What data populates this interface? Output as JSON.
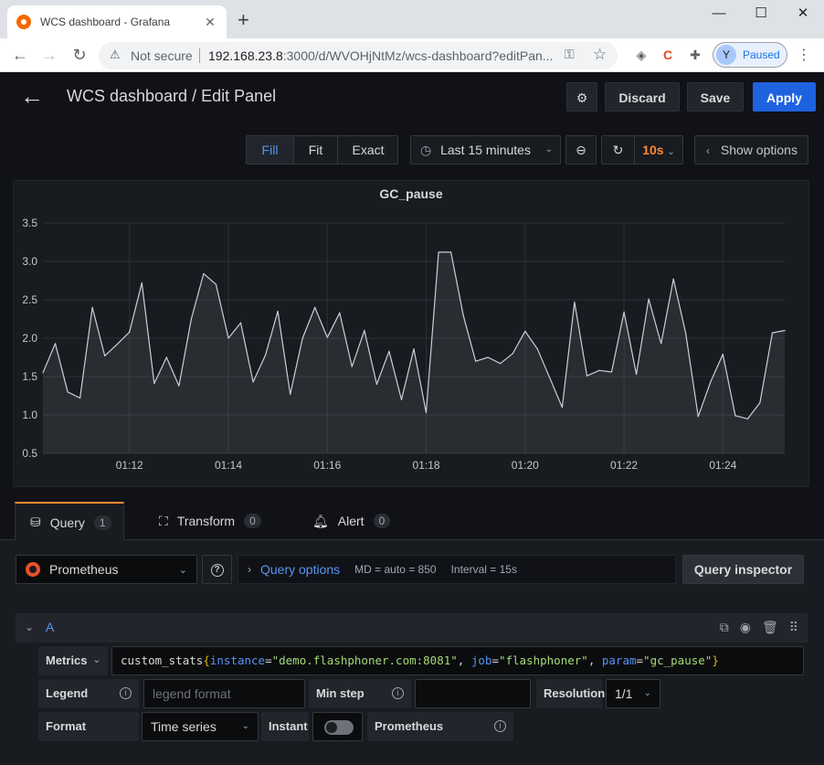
{
  "browser": {
    "tab_title": "WCS dashboard - Grafana",
    "omnibox": {
      "security_label": "Not secure",
      "url_host": "192.168.23.8",
      "url_rest": ":3000/d/WVOHjNtMz/wcs-dashboard?editPan..."
    },
    "profile": {
      "initial": "Y",
      "status": "Paused"
    }
  },
  "header": {
    "title": "WCS dashboard / Edit Panel",
    "discard_label": "Discard",
    "save_label": "Save",
    "apply_label": "Apply"
  },
  "panel_toolbar": {
    "fill_label": "Fill",
    "fit_label": "Fit",
    "exact_label": "Exact",
    "time_range": "Last 15 minutes",
    "refresh_interval": "10s",
    "show_options_label": "Show options"
  },
  "panel": {
    "title": "GC_pause"
  },
  "chart_data": {
    "type": "area",
    "title": "GC_pause",
    "x_tick_labels": [
      "01:12",
      "01:14",
      "01:16",
      "01:18",
      "01:20",
      "01:22",
      "01:24"
    ],
    "y_tick_labels": [
      "0.5",
      "1.0",
      "1.5",
      "2.0",
      "2.5",
      "3.0",
      "3.5"
    ],
    "ylim": [
      0.5,
      3.5
    ],
    "x_minutes_range": [
      70.25,
      85.25
    ],
    "grid": true,
    "series": [
      {
        "x": [
          70.25,
          70.5,
          70.75,
          71.0,
          71.25,
          71.5,
          71.75,
          72.0,
          72.25,
          72.5,
          72.75,
          73.0,
          73.25,
          73.5,
          73.75,
          74.0,
          74.25,
          74.5,
          74.75,
          75.0,
          75.25,
          75.5,
          75.75,
          76.0,
          76.25,
          76.5,
          76.75,
          77.0,
          77.25,
          77.5,
          77.75,
          78.0,
          78.25,
          78.5,
          78.75,
          79.0,
          79.25,
          79.5,
          79.75,
          80.0,
          80.25,
          80.5,
          80.75,
          81.0,
          81.25,
          81.5,
          81.75,
          82.0,
          82.25,
          82.5,
          82.75,
          83.0,
          83.25,
          83.5,
          83.75,
          84.0,
          84.25,
          84.5,
          84.75,
          85.0,
          85.25
        ],
        "values": [
          1.55,
          1.93,
          1.3,
          1.22,
          2.4,
          1.77,
          1.92,
          2.08,
          2.72,
          1.41,
          1.75,
          1.38,
          2.25,
          2.84,
          2.7,
          2.0,
          2.2,
          1.43,
          1.78,
          2.35,
          1.27,
          2.0,
          2.4,
          2.01,
          2.33,
          1.63,
          2.1,
          1.4,
          1.83,
          1.2,
          1.86,
          1.03,
          3.12,
          3.12,
          2.3,
          1.7,
          1.75,
          1.67,
          1.8,
          2.09,
          1.86,
          1.48,
          1.1,
          2.47,
          1.51,
          1.58,
          1.56,
          2.34,
          1.53,
          2.51,
          1.93,
          2.77,
          2.06,
          0.98,
          1.43,
          1.79,
          0.99,
          0.95,
          1.16,
          2.07,
          2.1
        ]
      }
    ]
  },
  "query_tabs": [
    {
      "label": "Query",
      "count": "1"
    },
    {
      "label": "Transform",
      "count": "0"
    },
    {
      "label": "Alert",
      "count": "0"
    }
  ],
  "query_bar": {
    "datasource": "Prometheus",
    "options_title": "Query options",
    "md_text": "MD = auto = 850",
    "interval_text": "Interval = 15s",
    "inspector_label": "Query inspector"
  },
  "query_row": {
    "ref_id": "A",
    "metrics_label": "Metrics",
    "expr": {
      "fn": "custom_stats",
      "open": "{",
      "k1": "instance",
      "v1": "\"demo.flashphoner.com:8081\"",
      "k2": "job",
      "v2": "\"flashphoner\"",
      "k3": "param",
      "v3": "\"gc_pause\"",
      "close": "}"
    },
    "legend_label": "Legend",
    "legend_placeholder": "legend format",
    "min_step_label": "Min step",
    "resolution_label": "Resolution",
    "resolution_value": "1/1",
    "format_label": "Format",
    "format_value": "Time series",
    "instant_label": "Instant",
    "prometheus_label": "Prometheus"
  },
  "colors": {
    "accent_blue": "#5794f2",
    "apply_blue": "#1f62e0",
    "refresh_orange": "#ff8833",
    "series_line": "#c7d0d9"
  }
}
